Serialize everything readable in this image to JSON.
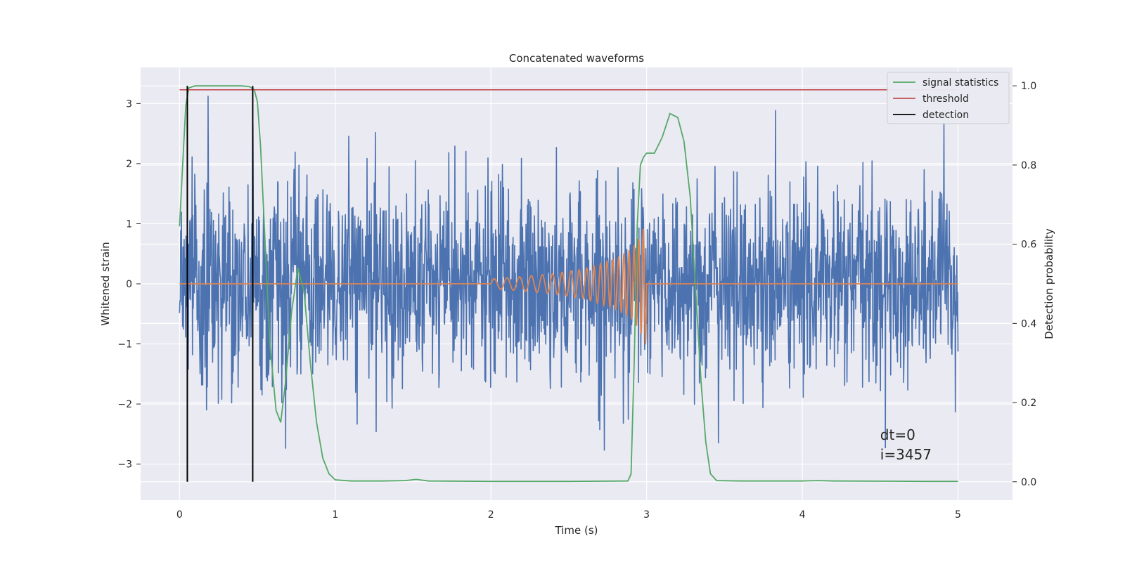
{
  "chart_data": {
    "type": "line",
    "title": "Concatenated waveforms",
    "xlabel": "Time (s)",
    "ylabel": "Whitened strain",
    "y2label": "Detection probability",
    "xlim": [
      -0.25,
      5.35
    ],
    "ylim": [
      -3.6,
      3.6
    ],
    "y2lim": [
      -0.0465,
      1.0465
    ],
    "x_ticks": [
      0,
      1,
      2,
      3,
      4,
      5
    ],
    "y_ticks": [
      -3,
      -2,
      -1,
      0,
      1,
      2,
      3
    ],
    "y2_ticks": [
      0.0,
      0.2,
      0.4,
      0.6,
      0.8,
      1.0
    ],
    "x_tick_labels": [
      "0",
      "1",
      "2",
      "3",
      "4",
      "5"
    ],
    "y_tick_labels": [
      "−3",
      "−2",
      "−1",
      "0",
      "1",
      "2",
      "3"
    ],
    "y2_tick_labels": [
      "0.0",
      "0.2",
      "0.4",
      "0.6",
      "0.8",
      "1.0"
    ],
    "grid": true,
    "legend_position": "top-right",
    "legend": [
      {
        "label": "signal statistics",
        "color": "#55a868"
      },
      {
        "label": "threshold",
        "color": "#c44e52"
      },
      {
        "label": "detection",
        "color": "#000000"
      }
    ],
    "series": [
      {
        "role": "strain",
        "axis": "left",
        "color": "#4c72b0",
        "x_range": [
          0,
          5
        ],
        "n_samples": 2048,
        "sd": 0.82,
        "approx_extremes": [
          -3.25,
          3.25
        ]
      },
      {
        "role": "injected-chirp",
        "axis": "left",
        "color": "#dd8452",
        "x": [
          0,
          2.0,
          2.2,
          2.4,
          2.6,
          2.8,
          2.9,
          2.95,
          3.0,
          3.0,
          5.0
        ],
        "amplitude": [
          0,
          0.08,
          0.12,
          0.17,
          0.25,
          0.42,
          0.58,
          0.75,
          1.05,
          0,
          0
        ]
      },
      {
        "name": "signal statistics",
        "axis": "right",
        "color": "#55a868",
        "x": [
          0,
          0.02,
          0.04,
          0.06,
          0.1,
          0.2,
          0.3,
          0.4,
          0.45,
          0.48,
          0.5,
          0.52,
          0.55,
          0.58,
          0.62,
          0.65,
          0.68,
          0.72,
          0.76,
          0.8,
          0.84,
          0.88,
          0.92,
          0.96,
          1.0,
          1.1,
          1.3,
          1.45,
          1.52,
          1.6,
          2.0,
          2.5,
          2.88,
          2.9,
          2.92,
          2.94,
          2.96,
          2.98,
          3.0,
          3.05,
          3.1,
          3.15,
          3.2,
          3.24,
          3.28,
          3.32,
          3.35,
          3.38,
          3.41,
          3.45,
          3.6,
          4.0,
          4.1,
          4.2,
          4.8,
          5.0
        ],
        "y": [
          0.645,
          0.8,
          0.95,
          0.995,
          1.0,
          1.0,
          1.0,
          1.0,
          0.998,
          0.99,
          0.96,
          0.85,
          0.6,
          0.35,
          0.18,
          0.15,
          0.25,
          0.43,
          0.54,
          0.48,
          0.3,
          0.15,
          0.06,
          0.02,
          0.005,
          0.002,
          0.002,
          0.003,
          0.006,
          0.002,
          0.001,
          0.001,
          0.002,
          0.02,
          0.3,
          0.65,
          0.8,
          0.82,
          0.83,
          0.83,
          0.87,
          0.93,
          0.92,
          0.86,
          0.72,
          0.45,
          0.25,
          0.1,
          0.02,
          0.003,
          0.002,
          0.002,
          0.003,
          0.002,
          0.001,
          0.001
        ]
      },
      {
        "name": "threshold",
        "axis": "right",
        "color": "#c44e52",
        "x": [
          0,
          5
        ],
        "y": [
          0.99,
          0.99
        ]
      },
      {
        "name": "detection",
        "axis": "right",
        "color": "#000000",
        "x": [
          0.05,
          0.47
        ],
        "y_span": [
          0,
          1.0
        ]
      }
    ],
    "annotation": {
      "line1": "dt=0",
      "line2": "i=3457",
      "x": 4.5,
      "y": -2.85
    }
  }
}
